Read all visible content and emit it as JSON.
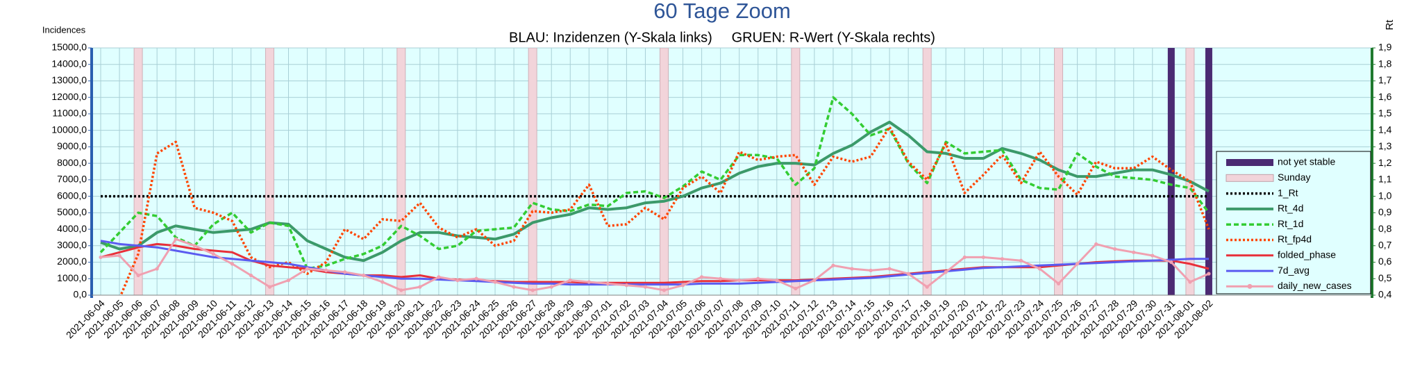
{
  "chart_data": {
    "type": "combo",
    "title": "60 Tage Zoom",
    "subtitle": "BLAU: Inzidenzen (Y-Skala links)     GRUEN: R-Wert (Y-Skala rechts)",
    "y_label": "Incidences",
    "y2_label": "Rt",
    "grid": true,
    "legend": "right",
    "background": "#e0ffff",
    "categories": [
      "2021-06-04",
      "2021-06-05",
      "2021-06-06",
      "2021-06-07",
      "2021-06-08",
      "2021-06-09",
      "2021-06-10",
      "2021-06-11",
      "2021-06-12",
      "2021-06-13",
      "2021-06-14",
      "2021-06-15",
      "2021-06-16",
      "2021-06-17",
      "2021-06-18",
      "2021-06-19",
      "2021-06-20",
      "2021-06-21",
      "2021-06-22",
      "2021-06-23",
      "2021-06-24",
      "2021-06-25",
      "2021-06-26",
      "2021-06-27",
      "2021-06-28",
      "2021-06-29",
      "2021-06-30",
      "2021-07-01",
      "2021-07-02",
      "2021-07-03",
      "2021-07-04",
      "2021-07-05",
      "2021-07-06",
      "2021-07-07",
      "2021-07-08",
      "2021-07-09",
      "2021-07-10",
      "2021-07-11",
      "2021-07-12",
      "2021-07-13",
      "2021-07-14",
      "2021-07-15",
      "2021-07-16",
      "2021-07-17",
      "2021-07-18",
      "2021-07-19",
      "2021-07-20",
      "2021-07-21",
      "2021-07-22",
      "2021-07-23",
      "2021-07-24",
      "2021-07-25",
      "2021-07-26",
      "2021-07-27",
      "2021-07-28",
      "2021-07-29",
      "2021-07-30",
      "2021-07-31",
      "2021-08-01",
      "2021-08-02"
    ],
    "ylim": [
      0,
      15000
    ],
    "yticks": [
      {
        "value": 0,
        "label": "0,0"
      },
      {
        "value": 1000,
        "label": "1000,0"
      },
      {
        "value": 2000,
        "label": "2000,0"
      },
      {
        "value": 3000,
        "label": "3000,0"
      },
      {
        "value": 4000,
        "label": "4000,0"
      },
      {
        "value": 5000,
        "label": "5000,0"
      },
      {
        "value": 6000,
        "label": "6000,0"
      },
      {
        "value": 7000,
        "label": "7000,0"
      },
      {
        "value": 8000,
        "label": "8000,0"
      },
      {
        "value": 9000,
        "label": "9000,0"
      },
      {
        "value": 10000,
        "label": "10000,0"
      },
      {
        "value": 11000,
        "label": "11000,0"
      },
      {
        "value": 12000,
        "label": "12000,0"
      },
      {
        "value": 13000,
        "label": "13000,0"
      },
      {
        "value": 14000,
        "label": "14000,0"
      },
      {
        "value": 15000,
        "label": "15000,0"
      }
    ],
    "y2lim": [
      0.4,
      1.9
    ],
    "y2ticks": [
      {
        "value": 0.4,
        "label": "0,4"
      },
      {
        "value": 0.5,
        "label": "0,5"
      },
      {
        "value": 0.6,
        "label": "0,6"
      },
      {
        "value": 0.7,
        "label": "0,7"
      },
      {
        "value": 0.8,
        "label": "0,8"
      },
      {
        "value": 0.9,
        "label": "0,9"
      },
      {
        "value": 1.0,
        "label": "1,0"
      },
      {
        "value": 1.1,
        "label": "1,1"
      },
      {
        "value": 1.2,
        "label": "1,2"
      },
      {
        "value": 1.3,
        "label": "1,3"
      },
      {
        "value": 1.4,
        "label": "1,4"
      },
      {
        "value": 1.5,
        "label": "1,5"
      },
      {
        "value": 1.6,
        "label": "1,6"
      },
      {
        "value": 1.7,
        "label": "1,7"
      },
      {
        "value": 1.8,
        "label": "1,8"
      },
      {
        "value": 1.9,
        "label": "1,9"
      }
    ],
    "series": [
      {
        "name": "not yet stable",
        "type": "bar",
        "color": "#4b2a72",
        "values": [
          null,
          null,
          null,
          null,
          null,
          null,
          null,
          null,
          null,
          null,
          null,
          null,
          null,
          null,
          null,
          null,
          null,
          null,
          null,
          null,
          null,
          null,
          null,
          null,
          null,
          null,
          null,
          null,
          null,
          null,
          null,
          null,
          null,
          null,
          null,
          null,
          null,
          null,
          null,
          null,
          null,
          null,
          null,
          null,
          null,
          null,
          null,
          null,
          null,
          null,
          null,
          null,
          null,
          null,
          null,
          null,
          null,
          15000,
          15000,
          15000
        ]
      },
      {
        "name": "Sunday",
        "type": "bar",
        "color": "#f2d4da",
        "values": [
          null,
          null,
          15000,
          null,
          null,
          null,
          null,
          null,
          null,
          15000,
          null,
          null,
          null,
          null,
          null,
          null,
          15000,
          null,
          null,
          null,
          null,
          null,
          null,
          15000,
          null,
          null,
          null,
          null,
          null,
          null,
          15000,
          null,
          null,
          null,
          null,
          null,
          null,
          15000,
          null,
          null,
          null,
          null,
          null,
          null,
          15000,
          null,
          null,
          null,
          null,
          null,
          null,
          15000,
          null,
          null,
          null,
          null,
          null,
          null,
          15000,
          null
        ]
      },
      {
        "name": "1_Rt",
        "type": "line",
        "axis": "y2",
        "color": "#000000",
        "dash": "dotted",
        "values": [
          1,
          1,
          1,
          1,
          1,
          1,
          1,
          1,
          1,
          1,
          1,
          1,
          1,
          1,
          1,
          1,
          1,
          1,
          1,
          1,
          1,
          1,
          1,
          1,
          1,
          1,
          1,
          1,
          1,
          1,
          1,
          1,
          1,
          1,
          1,
          1,
          1,
          1,
          1,
          1,
          1,
          1,
          1,
          1,
          1,
          1,
          1,
          1,
          1,
          1,
          1,
          1,
          1,
          1,
          1,
          1,
          1,
          1,
          1,
          1
        ]
      },
      {
        "name": "Rt_4d",
        "type": "line",
        "axis": "y2",
        "color": "#3c9a6a",
        "dash": "solid",
        "values": [
          0.72,
          0.68,
          0.7,
          0.78,
          0.82,
          0.8,
          0.78,
          0.79,
          0.8,
          0.84,
          0.83,
          0.73,
          0.68,
          0.63,
          0.61,
          0.66,
          0.73,
          0.78,
          0.78,
          0.76,
          0.75,
          0.74,
          0.77,
          0.84,
          0.87,
          0.89,
          0.93,
          0.92,
          0.93,
          0.96,
          0.97,
          1.0,
          1.05,
          1.08,
          1.14,
          1.18,
          1.2,
          1.2,
          1.19,
          1.26,
          1.31,
          1.39,
          1.45,
          1.37,
          1.27,
          1.26,
          1.23,
          1.23,
          1.29,
          1.26,
          1.22,
          1.16,
          1.12,
          1.12,
          1.14,
          1.16,
          1.16,
          1.13,
          1.09,
          1.03
        ]
      },
      {
        "name": "Rt_1d",
        "type": "line",
        "axis": "y2",
        "color": "#33cc33",
        "dash": "dashed",
        "values": [
          0.66,
          0.78,
          0.9,
          0.88,
          0.75,
          0.7,
          0.83,
          0.9,
          0.78,
          0.84,
          0.82,
          0.56,
          0.58,
          0.62,
          0.65,
          0.7,
          0.82,
          0.76,
          0.68,
          0.7,
          0.79,
          0.8,
          0.81,
          0.96,
          0.92,
          0.91,
          0.95,
          0.94,
          1.02,
          1.03,
          0.99,
          1.06,
          1.15,
          1.1,
          1.25,
          1.25,
          1.23,
          1.07,
          1.17,
          1.6,
          1.5,
          1.37,
          1.41,
          1.2,
          1.08,
          1.33,
          1.26,
          1.27,
          1.28,
          1.1,
          1.05,
          1.04,
          1.26,
          1.18,
          1.12,
          1.11,
          1.1,
          1.07,
          1.05,
          0.9
        ]
      },
      {
        "name": "Rt_fp4d",
        "type": "line",
        "axis": "y2",
        "color": "#ff4500",
        "dash": "dotted",
        "values": [
          0.25,
          0.38,
          0.65,
          1.26,
          1.33,
          0.93,
          0.9,
          0.85,
          0.63,
          0.57,
          0.6,
          0.53,
          0.6,
          0.8,
          0.74,
          0.86,
          0.85,
          0.96,
          0.81,
          0.75,
          0.8,
          0.7,
          0.73,
          0.91,
          0.9,
          0.92,
          1.07,
          0.82,
          0.83,
          0.93,
          0.86,
          1.05,
          1.12,
          1.02,
          1.27,
          1.22,
          1.24,
          1.25,
          1.07,
          1.24,
          1.21,
          1.24,
          1.42,
          1.21,
          1.1,
          1.32,
          1.02,
          1.13,
          1.25,
          1.08,
          1.27,
          1.12,
          1.01,
          1.21,
          1.17,
          1.17,
          1.24,
          1.16,
          1.09,
          0.8
        ]
      },
      {
        "name": "folded_phase",
        "type": "line",
        "color": "#e8303a",
        "dash": "solid",
        "values": [
          2300,
          2600,
          2900,
          3100,
          3000,
          2800,
          2700,
          2600,
          2100,
          1800,
          1700,
          1600,
          1400,
          1300,
          1200,
          1200,
          1100,
          1200,
          1000,
          950,
          900,
          850,
          800,
          800,
          800,
          800,
          750,
          750,
          750,
          750,
          750,
          800,
          850,
          850,
          900,
          900,
          900,
          900,
          950,
          1000,
          1050,
          1100,
          1200,
          1300,
          1400,
          1500,
          1600,
          1700,
          1700,
          1700,
          1700,
          1800,
          1900,
          2000,
          2050,
          2100,
          2100,
          2100,
          1900,
          1600
        ]
      },
      {
        "name": "7d_avg",
        "type": "line",
        "color": "#5b5bf0",
        "dash": "solid",
        "values": [
          3300,
          3100,
          3000,
          2900,
          2700,
          2500,
          2300,
          2200,
          2100,
          2000,
          1900,
          1700,
          1500,
          1300,
          1200,
          1100,
          1000,
          1000,
          950,
          900,
          850,
          800,
          750,
          700,
          700,
          650,
          650,
          650,
          650,
          650,
          650,
          650,
          700,
          700,
          700,
          750,
          800,
          850,
          900,
          950,
          1000,
          1050,
          1150,
          1250,
          1350,
          1450,
          1550,
          1650,
          1700,
          1750,
          1800,
          1850,
          1900,
          1950,
          2000,
          2050,
          2100,
          2150,
          2200,
          2200
        ]
      },
      {
        "name": "daily_new_cases",
        "type": "line",
        "color": "#f0a0b0",
        "dash": "solid",
        "marker": true,
        "values": [
          2300,
          2400,
          1200,
          1600,
          3400,
          3000,
          2500,
          1900,
          1200,
          500,
          900,
          1600,
          1500,
          1400,
          1200,
          800,
          300,
          500,
          1100,
          900,
          1000,
          800,
          500,
          300,
          500,
          900,
          800,
          700,
          600,
          500,
          300,
          600,
          1100,
          1000,
          900,
          1000,
          900,
          400,
          900,
          1800,
          1600,
          1500,
          1600,
          1300,
          500,
          1400,
          2300,
          2300,
          2200,
          2100,
          1600,
          700,
          1900,
          3100,
          2800,
          2600,
          2400,
          2000,
          800,
          1300
        ]
      }
    ]
  }
}
